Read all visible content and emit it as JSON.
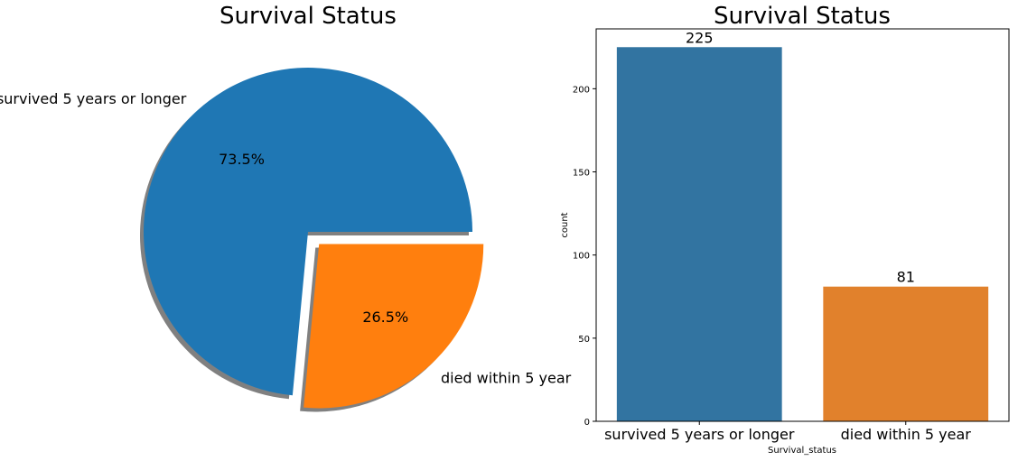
{
  "chart_data": [
    {
      "type": "pie",
      "title": "Survival Status",
      "categories": [
        "survived 5 years or longer",
        "died within 5 year"
      ],
      "values": [
        73.5,
        26.5
      ],
      "value_labels": [
        "73.5%",
        "26.5%"
      ],
      "explode": [
        0,
        0.1
      ],
      "shadow": true,
      "colors": [
        "#1f77b4",
        "#ff7f0e"
      ]
    },
    {
      "type": "bar",
      "title": "Survival Status",
      "categories": [
        "survived 5 years or longer",
        "died within 5 year"
      ],
      "values": [
        225,
        81
      ],
      "data_labels": [
        "225",
        "81"
      ],
      "xlabel": "Survival_status",
      "ylabel": "count",
      "ylim": [
        0,
        236
      ],
      "yticks": [
        "0",
        "50",
        "100",
        "150",
        "200"
      ],
      "grid": false,
      "colors": [
        "#3274a1",
        "#e1812c"
      ]
    }
  ]
}
